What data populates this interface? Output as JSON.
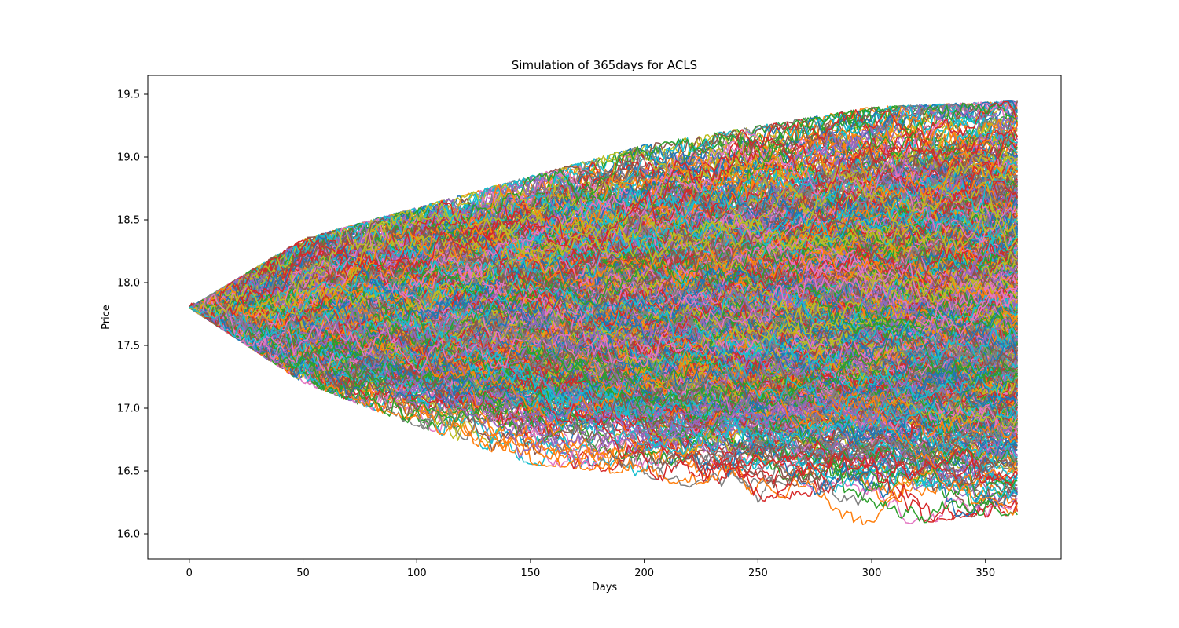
{
  "chart_data": {
    "type": "line",
    "title": "Simulation of 365days for ACLS",
    "xlabel": "Days",
    "ylabel": "Price",
    "xlim": [
      -18.25,
      383.25
    ],
    "ylim": [
      15.8,
      19.65
    ],
    "x_ticks": [
      0,
      50,
      100,
      150,
      200,
      250,
      300,
      350
    ],
    "y_ticks": [
      16.0,
      16.5,
      17.0,
      17.5,
      18.0,
      18.5,
      19.0,
      19.5
    ],
    "y_tick_labels": [
      "16.0",
      "16.5",
      "17.0",
      "17.5",
      "18.0",
      "18.5",
      "19.0",
      "19.5"
    ],
    "grid": false,
    "legend": "none",
    "start_value": 17.8,
    "num_days": 365,
    "num_simulations": 1000,
    "colors": [
      "#1f77b4",
      "#ff7f0e",
      "#2ca02c",
      "#d62728",
      "#9467bd",
      "#8c564b",
      "#e377c2",
      "#7f7f7f",
      "#bcbd22",
      "#17becf"
    ],
    "envelope_upper": [
      [
        0,
        17.8
      ],
      [
        50,
        18.35
      ],
      [
        100,
        18.6
      ],
      [
        150,
        18.85
      ],
      [
        200,
        19.1
      ],
      [
        250,
        19.25
      ],
      [
        300,
        19.4
      ],
      [
        364,
        19.45
      ]
    ],
    "envelope_lower": [
      [
        0,
        17.8
      ],
      [
        50,
        17.2
      ],
      [
        100,
        16.85
      ],
      [
        150,
        16.55
      ],
      [
        200,
        16.45
      ],
      [
        250,
        16.25
      ],
      [
        300,
        16.05
      ],
      [
        364,
        16.15
      ]
    ],
    "final_values_examples": [
      19.45,
      19.25,
      18.95,
      18.5,
      18.1,
      17.6,
      17.2,
      16.85,
      16.5,
      16.15
    ]
  }
}
